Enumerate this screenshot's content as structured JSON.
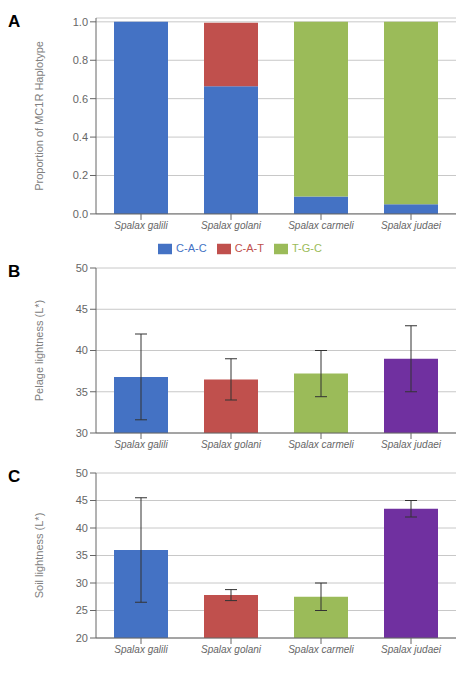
{
  "chart_data": [
    {
      "type": "bar",
      "title": "A",
      "stacked": true,
      "categories": [
        "Spalax galili",
        "Spalax golani",
        "Spalax carmeli",
        "Spalax judaei"
      ],
      "ylabel": "Proportion of MC1R Haplotype",
      "ylim": [
        0,
        1.02
      ],
      "yticks": [
        {
          "value": 0,
          "label": "0.0"
        },
        0.2,
        0.4,
        0.6,
        0.8,
        {
          "value": 1.0,
          "label": "1.0"
        }
      ],
      "series": [
        {
          "name": "C-A-C",
          "color": "#4472C4",
          "values": [
            1.0,
            0.665,
            0.09,
            0.05
          ]
        },
        {
          "name": "C-A-T",
          "color": "#C0504D",
          "values": [
            0.0,
            0.33,
            0.0,
            0.0
          ]
        },
        {
          "name": "T-G-C",
          "color": "#9BBB59",
          "values": [
            0.0,
            0.0,
            0.91,
            0.95
          ]
        }
      ],
      "grid": true,
      "legend": "bottom"
    },
    {
      "type": "bar",
      "title": "B",
      "categories": [
        "Spalax galili",
        "Spalax golani",
        "Spalax carmeli",
        "Spalax judaei"
      ],
      "ylabel": "Pelage lightness (L*)",
      "ylim": [
        30,
        50
      ],
      "yticks": [
        30,
        35,
        40,
        45,
        50
      ],
      "values": [
        36.8,
        36.5,
        37.2,
        39.0
      ],
      "errors": [
        5.2,
        2.5,
        2.8,
        4.0
      ],
      "colors": [
        "#4472C4",
        "#C0504D",
        "#9BBB59",
        "#7030A0"
      ],
      "grid": true
    },
    {
      "type": "bar",
      "title": "C",
      "categories": [
        "Spalax galili",
        "Spalax golani",
        "Spalax carmeli",
        "Spalax judaei"
      ],
      "ylabel": "Soil lightness (L*)",
      "ylim": [
        20,
        50
      ],
      "yticks": [
        20,
        25,
        30,
        35,
        40,
        45,
        50
      ],
      "values": [
        36.0,
        27.8,
        27.5,
        43.5
      ],
      "errors": [
        9.5,
        1.0,
        2.5,
        1.5
      ],
      "colors": [
        "#4472C4",
        "#C0504D",
        "#9BBB59",
        "#7030A0"
      ],
      "grid": true
    }
  ]
}
